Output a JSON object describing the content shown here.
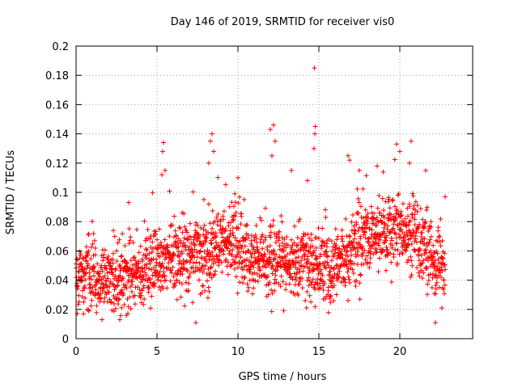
{
  "chart_data": {
    "type": "scatter",
    "title": "Day 146 of 2019, SRMTID for receiver vis0",
    "xlabel": "GPS time / hours",
    "ylabel": "SRMTID / TECUs",
    "xlim": [
      0,
      24.5
    ],
    "ylim": [
      0,
      0.2
    ],
    "xticks": [
      0,
      5,
      10,
      15,
      20
    ],
    "xtick_labels": [
      "0",
      "5",
      "10",
      "15",
      "20"
    ],
    "yticks": [
      0,
      0.02,
      0.04,
      0.06,
      0.08,
      0.1,
      0.12,
      0.14,
      0.16,
      0.18,
      0.2
    ],
    "ytick_labels": [
      "0",
      "0.02",
      "0.04",
      "0.06",
      "0.08",
      "0.1",
      "0.12",
      "0.14",
      "0.16",
      "0.18",
      "0.2"
    ],
    "grid": true,
    "marker": "+",
    "marker_color": "#ff0000",
    "series": [
      {
        "name": "SRMTID",
        "note": "approximately 2000 points, GPS time 0 to 22.8 h",
        "trend": [
          [
            0.0,
            0.045
          ],
          [
            1.0,
            0.042
          ],
          [
            2.0,
            0.04
          ],
          [
            3.0,
            0.042
          ],
          [
            4.0,
            0.045
          ],
          [
            5.0,
            0.05
          ],
          [
            6.0,
            0.055
          ],
          [
            7.0,
            0.055
          ],
          [
            8.0,
            0.06
          ],
          [
            9.0,
            0.065
          ],
          [
            10.0,
            0.062
          ],
          [
            11.0,
            0.055
          ],
          [
            12.0,
            0.052
          ],
          [
            13.0,
            0.05
          ],
          [
            14.0,
            0.052
          ],
          [
            15.0,
            0.048
          ],
          [
            16.0,
            0.05
          ],
          [
            17.0,
            0.06
          ],
          [
            18.0,
            0.068
          ],
          [
            19.0,
            0.072
          ],
          [
            20.0,
            0.075
          ],
          [
            21.0,
            0.07
          ],
          [
            22.0,
            0.055
          ],
          [
            22.8,
            0.05
          ]
        ],
        "outliers": [
          [
            14.72,
            0.185
          ],
          [
            14.78,
            0.145
          ],
          [
            14.75,
            0.14
          ],
          [
            14.7,
            0.13
          ],
          [
            12.2,
            0.146
          ],
          [
            12.0,
            0.143
          ],
          [
            12.3,
            0.135
          ],
          [
            12.1,
            0.125
          ],
          [
            8.4,
            0.14
          ],
          [
            8.3,
            0.135
          ],
          [
            8.5,
            0.128
          ],
          [
            8.2,
            0.12
          ],
          [
            5.4,
            0.134
          ],
          [
            5.35,
            0.128
          ],
          [
            5.5,
            0.115
          ],
          [
            5.3,
            0.112
          ],
          [
            3.25,
            0.093
          ],
          [
            2.7,
            0.013
          ],
          [
            1.6,
            0.013
          ],
          [
            7.4,
            0.011
          ],
          [
            20.7,
            0.135
          ],
          [
            19.8,
            0.133
          ],
          [
            20.0,
            0.128
          ],
          [
            20.6,
            0.12
          ],
          [
            16.8,
            0.125
          ],
          [
            16.9,
            0.122
          ],
          [
            17.5,
            0.115
          ],
          [
            18.6,
            0.118
          ],
          [
            21.6,
            0.115
          ],
          [
            22.8,
            0.097
          ],
          [
            22.2,
            0.011
          ],
          [
            22.6,
            0.021
          ],
          [
            10.0,
            0.11
          ],
          [
            13.3,
            0.115
          ],
          [
            14.3,
            0.108
          ]
        ]
      }
    ]
  }
}
